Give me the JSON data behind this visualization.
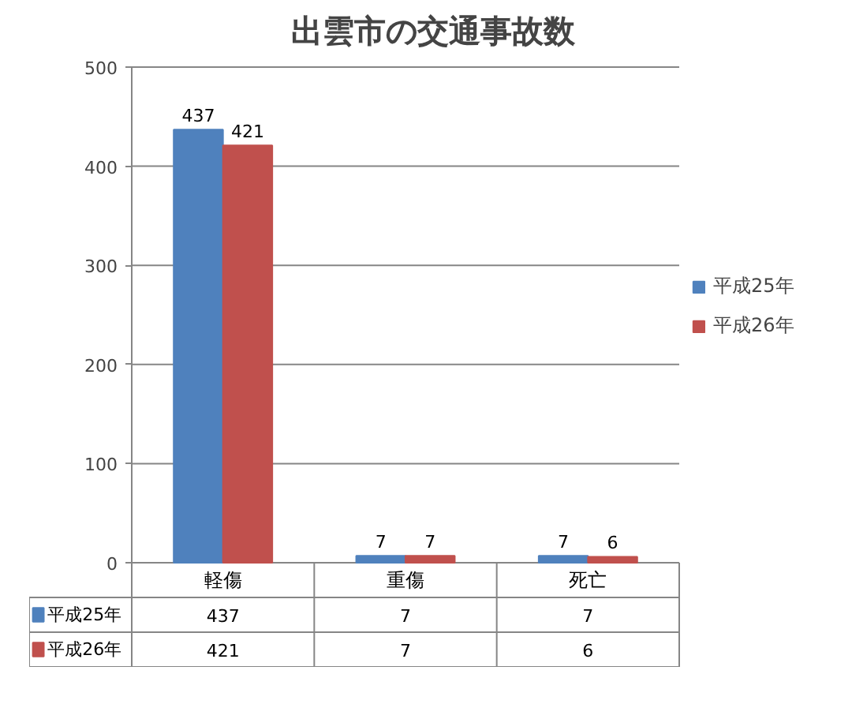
{
  "chart_data": {
    "type": "bar",
    "title": "出雲市の交通事故数",
    "categories": [
      "軽傷",
      "重傷",
      "死亡"
    ],
    "series": [
      {
        "name": "平成25年",
        "color": "#4f81bd",
        "values": [
          437,
          7,
          7
        ],
        "value_labels": [
          "437",
          "7",
          "7"
        ]
      },
      {
        "name": "平成26年",
        "color": "#c0504d",
        "values": [
          421,
          7,
          6
        ],
        "value_labels": [
          "421",
          "7",
          "6"
        ]
      }
    ],
    "ylim": [
      0,
      500
    ],
    "yticks": [
      0,
      100,
      200,
      300,
      400,
      500
    ],
    "grid": "y",
    "legend": "right",
    "data_labels": true
  }
}
